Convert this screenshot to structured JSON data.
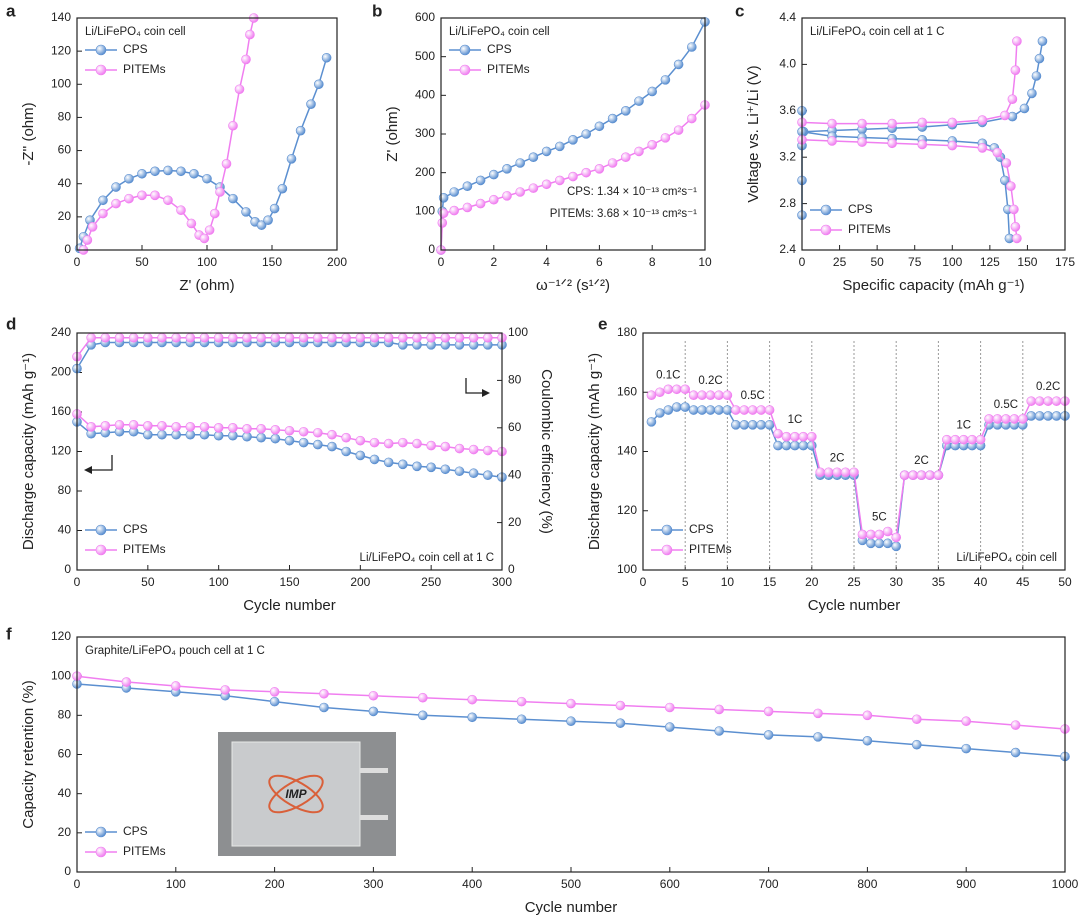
{
  "chart_data": [
    {
      "panel": "a",
      "type": "line",
      "annotation": [
        "Li/LiFePO₄ coin cell"
      ],
      "xlabel": "Z' (ohm)",
      "ylabel": "-Z'' (ohm)",
      "xlim": [
        0,
        200
      ],
      "xticks": [
        0,
        50,
        100,
        150,
        200
      ],
      "ylim": [
        0,
        140
      ],
      "yticks": [
        0,
        20,
        40,
        60,
        80,
        100,
        120,
        140
      ],
      "legend": "upper left",
      "series": [
        {
          "name": "CPS",
          "color": "#5b8fd0",
          "x": [
            2,
            5,
            10,
            20,
            30,
            40,
            50,
            60,
            70,
            80,
            90,
            100,
            110,
            120,
            130,
            137,
            142,
            147,
            152,
            158,
            165,
            172,
            180,
            186,
            192
          ],
          "values": [
            1,
            8,
            18,
            30,
            38,
            43,
            46,
            47.5,
            48,
            47.5,
            46,
            43,
            38,
            31,
            23,
            17,
            15,
            18,
            25,
            37,
            55,
            72,
            88,
            100,
            116
          ]
        },
        {
          "name": "PITEMs",
          "color": "#f07ef0",
          "x": [
            5,
            8,
            12,
            20,
            30,
            40,
            50,
            60,
            70,
            80,
            88,
            94,
            98,
            102,
            106,
            110,
            115,
            120,
            125,
            130,
            133,
            136
          ],
          "values": [
            0,
            6,
            14,
            22,
            28,
            31,
            33,
            33,
            30,
            24,
            16,
            9,
            7,
            12,
            22,
            35,
            52,
            75,
            97,
            115,
            130,
            140
          ]
        }
      ]
    },
    {
      "panel": "b",
      "type": "line",
      "annotation": [
        "Li/LiFePO₄ coin cell",
        "CPS: 1.34 × 10⁻¹³ cm²s⁻¹",
        "PITEMs: 3.68 × 10⁻¹³ cm²s⁻¹"
      ],
      "xlabel": "ω⁻¹ᐟ² (s¹ᐟ²)",
      "ylabel": "Z' (ohm)",
      "xlim": [
        0,
        10
      ],
      "xticks": [
        0,
        2,
        4,
        6,
        8,
        10
      ],
      "ylim": [
        0,
        600
      ],
      "yticks": [
        0,
        100,
        200,
        300,
        400,
        500,
        600
      ],
      "legend": "upper left",
      "series": [
        {
          "name": "CPS",
          "color": "#5b8fd0",
          "x": [
            0,
            0.05,
            0.1,
            0.5,
            1,
            1.5,
            2,
            2.5,
            3,
            3.5,
            4,
            4.5,
            5,
            5.5,
            6,
            6.5,
            7,
            7.5,
            8,
            8.5,
            9,
            9.5,
            10
          ],
          "values": [
            0,
            100,
            135,
            150,
            165,
            180,
            195,
            210,
            225,
            240,
            255,
            268,
            285,
            300,
            320,
            340,
            360,
            385,
            410,
            440,
            480,
            525,
            590
          ]
        },
        {
          "name": "PITEMs",
          "color": "#f07ef0",
          "x": [
            0,
            0.05,
            0.1,
            0.5,
            1,
            1.5,
            2,
            2.5,
            3,
            3.5,
            4,
            4.5,
            5,
            5.5,
            6,
            6.5,
            7,
            7.5,
            8,
            8.5,
            9,
            9.5,
            10
          ],
          "values": [
            0,
            70,
            95,
            102,
            110,
            120,
            130,
            140,
            150,
            160,
            170,
            180,
            190,
            200,
            210,
            225,
            240,
            255,
            272,
            290,
            310,
            340,
            375
          ]
        }
      ]
    },
    {
      "panel": "c",
      "type": "line",
      "annotation": [
        "Li/LiFePO₄ coin cell at 1 C"
      ],
      "xlabel": "Specific capacity (mAh g⁻¹)",
      "ylabel": "Voltage vs. Li⁺/Li (V)",
      "xlim": [
        0,
        175
      ],
      "xticks": [
        0,
        25,
        50,
        75,
        100,
        125,
        150,
        175
      ],
      "ylim": [
        2.4,
        4.4
      ],
      "yticks": [
        2.4,
        2.8,
        3.2,
        3.6,
        {
          "value": 4,
          "label": "4.0"
        },
        4.4
      ],
      "legend": "lower left",
      "series": [
        {
          "name": "CPS",
          "color": "#5b8fd0",
          "x": [
            0,
            0,
            0,
            0,
            1,
            20,
            40,
            60,
            80,
            100,
            120,
            140,
            148,
            153,
            156,
            158,
            160,
            null,
            0,
            20,
            40,
            60,
            80,
            100,
            120,
            128,
            132,
            135,
            137,
            138
          ],
          "values": [
            2.7,
            3.0,
            3.3,
            3.6,
            3.42,
            3.43,
            3.44,
            3.45,
            3.46,
            3.48,
            3.5,
            3.55,
            3.62,
            3.75,
            3.9,
            4.05,
            4.2,
            null,
            3.42,
            3.38,
            3.37,
            3.36,
            3.35,
            3.34,
            3.32,
            3.28,
            3.2,
            3.0,
            2.75,
            2.5
          ]
        },
        {
          "name": "PITEMs",
          "color": "#f07ef0",
          "x": [
            0,
            20,
            40,
            60,
            80,
            100,
            120,
            135,
            140,
            142,
            143,
            null,
            0,
            20,
            40,
            60,
            80,
            100,
            120,
            130,
            136,
            139,
            141,
            142,
            143
          ],
          "values": [
            3.5,
            3.49,
            3.49,
            3.49,
            3.5,
            3.5,
            3.52,
            3.56,
            3.7,
            3.95,
            4.2,
            null,
            3.35,
            3.34,
            3.33,
            3.32,
            3.31,
            3.3,
            3.28,
            3.24,
            3.15,
            2.95,
            2.75,
            2.6,
            2.5
          ]
        }
      ]
    },
    {
      "panel": "d",
      "type": "line",
      "annotation": [
        "Li/LiFePO₄ coin cell at 1 C"
      ],
      "xlabel": "Cycle number",
      "ylabel": "Discharge capacity (mAh g⁻¹)",
      "y2label": "Coulombic efficiency (%)",
      "xlim": [
        0,
        300
      ],
      "xticks": [
        0,
        50,
        100,
        150,
        200,
        250,
        300
      ],
      "ylim": [
        0,
        240
      ],
      "yticks": [
        0,
        40,
        80,
        120,
        160,
        200,
        240
      ],
      "y2lim": [
        0,
        100
      ],
      "y2ticks": [
        0,
        20,
        40,
        60,
        80,
        100
      ],
      "legend": "lower left",
      "x": [
        0,
        10,
        20,
        30,
        40,
        50,
        60,
        70,
        80,
        90,
        100,
        110,
        120,
        130,
        140,
        150,
        160,
        170,
        180,
        190,
        200,
        210,
        220,
        230,
        240,
        250,
        260,
        270,
        280,
        290,
        300
      ],
      "series": [
        {
          "name": "CPS",
          "color": "#5b8fd0",
          "values": [
            150,
            138,
            139,
            140,
            140,
            137,
            137,
            137,
            137,
            137,
            136,
            136,
            135,
            134,
            133,
            131,
            129,
            127,
            125,
            120,
            116,
            112,
            109,
            107,
            105,
            104,
            102,
            100,
            98,
            96,
            94
          ]
        },
        {
          "name": "PITEMs",
          "color": "#f07ef0",
          "values": [
            158,
            145,
            146,
            147,
            147,
            146,
            146,
            145,
            145,
            145,
            144,
            144,
            143,
            143,
            142,
            141,
            140,
            139,
            137,
            134,
            131,
            129,
            128,
            129,
            128,
            126,
            125,
            123,
            122,
            121,
            120
          ]
        },
        {
          "color": "#5b8fd0",
          "axis": "y2",
          "values": [
            85,
            95,
            96,
            96,
            96,
            96,
            96,
            96,
            96,
            96,
            96,
            96,
            96,
            96,
            96,
            96,
            96,
            96,
            96,
            96,
            96,
            96,
            96,
            95,
            95,
            95,
            95,
            95,
            95,
            95,
            95
          ]
        },
        {
          "color": "#f07ef0",
          "axis": "y2",
          "values": [
            90,
            98,
            98,
            98,
            98,
            98,
            98,
            98,
            98,
            98,
            98,
            98,
            98,
            98,
            98,
            98,
            98,
            98,
            98,
            98,
            98,
            98,
            98,
            98,
            98,
            98,
            98,
            98,
            98,
            98,
            98
          ]
        }
      ]
    },
    {
      "panel": "e",
      "type": "line",
      "annotation": [
        "Li/LiFePO₄ coin cell"
      ],
      "xlabel": "Cycle number",
      "ylabel": "Discharge capacity (mAh g⁻¹)",
      "xlim": [
        0,
        50
      ],
      "xticks": [
        0,
        5,
        10,
        15,
        20,
        25,
        30,
        35,
        40,
        45,
        50
      ],
      "ylim": [
        100,
        180
      ],
      "yticks": [
        100,
        120,
        140,
        160,
        180
      ],
      "legend": "lower left",
      "vlines": [
        5,
        10,
        15,
        20,
        25,
        30,
        35,
        40,
        45
      ],
      "rate_labels": [
        "0.1C",
        "0.2C",
        "0.5C",
        "1C",
        "2C",
        "5C",
        "2C",
        "1C",
        "0.5C",
        "0.2C"
      ],
      "x": [
        1,
        2,
        3,
        4,
        5,
        6,
        7,
        8,
        9,
        10,
        11,
        12,
        13,
        14,
        15,
        16,
        17,
        18,
        19,
        20,
        21,
        22,
        23,
        24,
        25,
        26,
        27,
        28,
        29,
        30,
        31,
        32,
        33,
        34,
        35,
        36,
        37,
        38,
        39,
        40,
        41,
        42,
        43,
        44,
        45,
        46,
        47,
        48,
        49,
        50
      ],
      "series": [
        {
          "name": "CPS",
          "color": "#5b8fd0",
          "values": [
            150,
            153,
            154,
            155,
            155,
            154,
            154,
            154,
            154,
            154,
            149,
            149,
            149,
            149,
            149,
            142,
            142,
            142,
            142,
            142,
            132,
            132,
            132,
            132,
            132,
            110,
            109,
            109,
            109,
            108,
            132,
            132,
            132,
            132,
            132,
            142,
            142,
            142,
            142,
            142,
            149,
            149,
            149,
            149,
            149,
            152,
            152,
            152,
            152,
            152
          ]
        },
        {
          "name": "PITEMs",
          "color": "#f07ef0",
          "values": [
            159,
            160,
            161,
            161,
            161,
            159,
            159,
            159,
            159,
            159,
            154,
            154,
            154,
            154,
            154,
            146,
            145,
            145,
            145,
            145,
            133,
            133,
            133,
            133,
            133,
            112,
            112,
            112,
            113,
            111,
            132,
            132,
            132,
            132,
            132,
            144,
            144,
            144,
            144,
            144,
            151,
            151,
            151,
            151,
            151,
            157,
            157,
            157,
            157,
            157
          ]
        }
      ]
    },
    {
      "panel": "f",
      "type": "line",
      "annotation": [
        "Graphite/LiFePO₄ pouch cell at 1 C"
      ],
      "xlabel": "Cycle number",
      "ylabel": "Capacity retention (%)",
      "xlim": [
        0,
        1000
      ],
      "xticks": [
        0,
        100,
        200,
        300,
        400,
        500,
        600,
        700,
        800,
        900,
        1000
      ],
      "ylim": [
        0,
        120
      ],
      "yticks": [
        0,
        20,
        40,
        60,
        80,
        100,
        120
      ],
      "legend": "lower left",
      "inset_text": "IMP",
      "x": [
        0,
        50,
        100,
        150,
        200,
        250,
        300,
        350,
        400,
        450,
        500,
        550,
        600,
        650,
        700,
        750,
        800,
        850,
        900,
        950,
        1000
      ],
      "series": [
        {
          "name": "CPS",
          "color": "#5b8fd0",
          "values": [
            96,
            94,
            92,
            90,
            87,
            84,
            82,
            80,
            79,
            78,
            77,
            76,
            74,
            72,
            70,
            69,
            67,
            65,
            63,
            61,
            59
          ]
        },
        {
          "name": "PITEMs",
          "color": "#f07ef0",
          "values": [
            100,
            97,
            95,
            93,
            92,
            91,
            90,
            89,
            88,
            87,
            86,
            85,
            84,
            83,
            82,
            81,
            80,
            78,
            77,
            75,
            73
          ]
        }
      ]
    }
  ]
}
